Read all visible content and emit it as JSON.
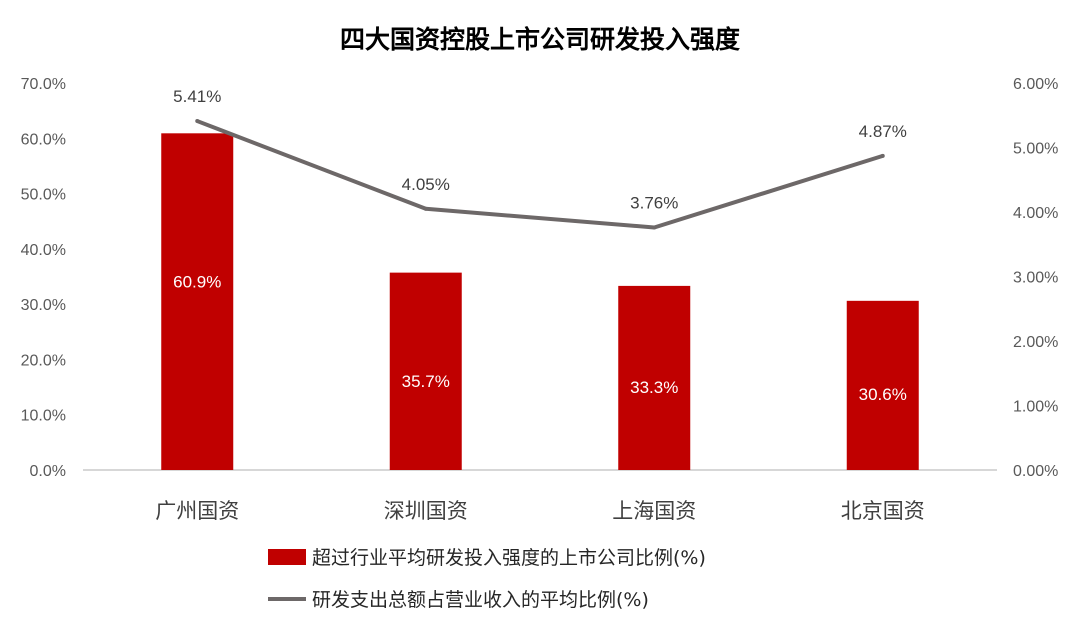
{
  "chart_data": {
    "type": "bar+line",
    "title": "四大国资控股上市公司研发投入强度",
    "categories": [
      "广州国资",
      "深圳国资",
      "上海国资",
      "北京国资"
    ],
    "series": [
      {
        "name": "超过行业平均研发投入强度的上市公司比例(%)",
        "type": "bar",
        "axis": "left",
        "color": "#C00000",
        "values": [
          60.9,
          35.7,
          33.3,
          30.6
        ],
        "labels": [
          "60.9%",
          "35.7%",
          "33.3%",
          "30.6%"
        ]
      },
      {
        "name": "研发支出总额占营业收入的平均比例(%)",
        "type": "line",
        "axis": "right",
        "color": "#6D6868",
        "values": [
          5.41,
          4.05,
          3.76,
          4.87
        ],
        "labels": [
          "5.41%",
          "4.05%",
          "3.76%",
          "4.87%"
        ]
      }
    ],
    "left_axis": {
      "ylim": [
        0,
        70
      ],
      "ticks": [
        "0.0%",
        "10.0%",
        "20.0%",
        "30.0%",
        "40.0%",
        "50.0%",
        "60.0%",
        "70.0%"
      ]
    },
    "right_axis": {
      "ylim": [
        0,
        6
      ],
      "ticks": [
        "0.00%",
        "1.00%",
        "2.00%",
        "3.00%",
        "4.00%",
        "5.00%",
        "6.00%"
      ]
    },
    "grid": false,
    "legend_position": "bottom"
  }
}
